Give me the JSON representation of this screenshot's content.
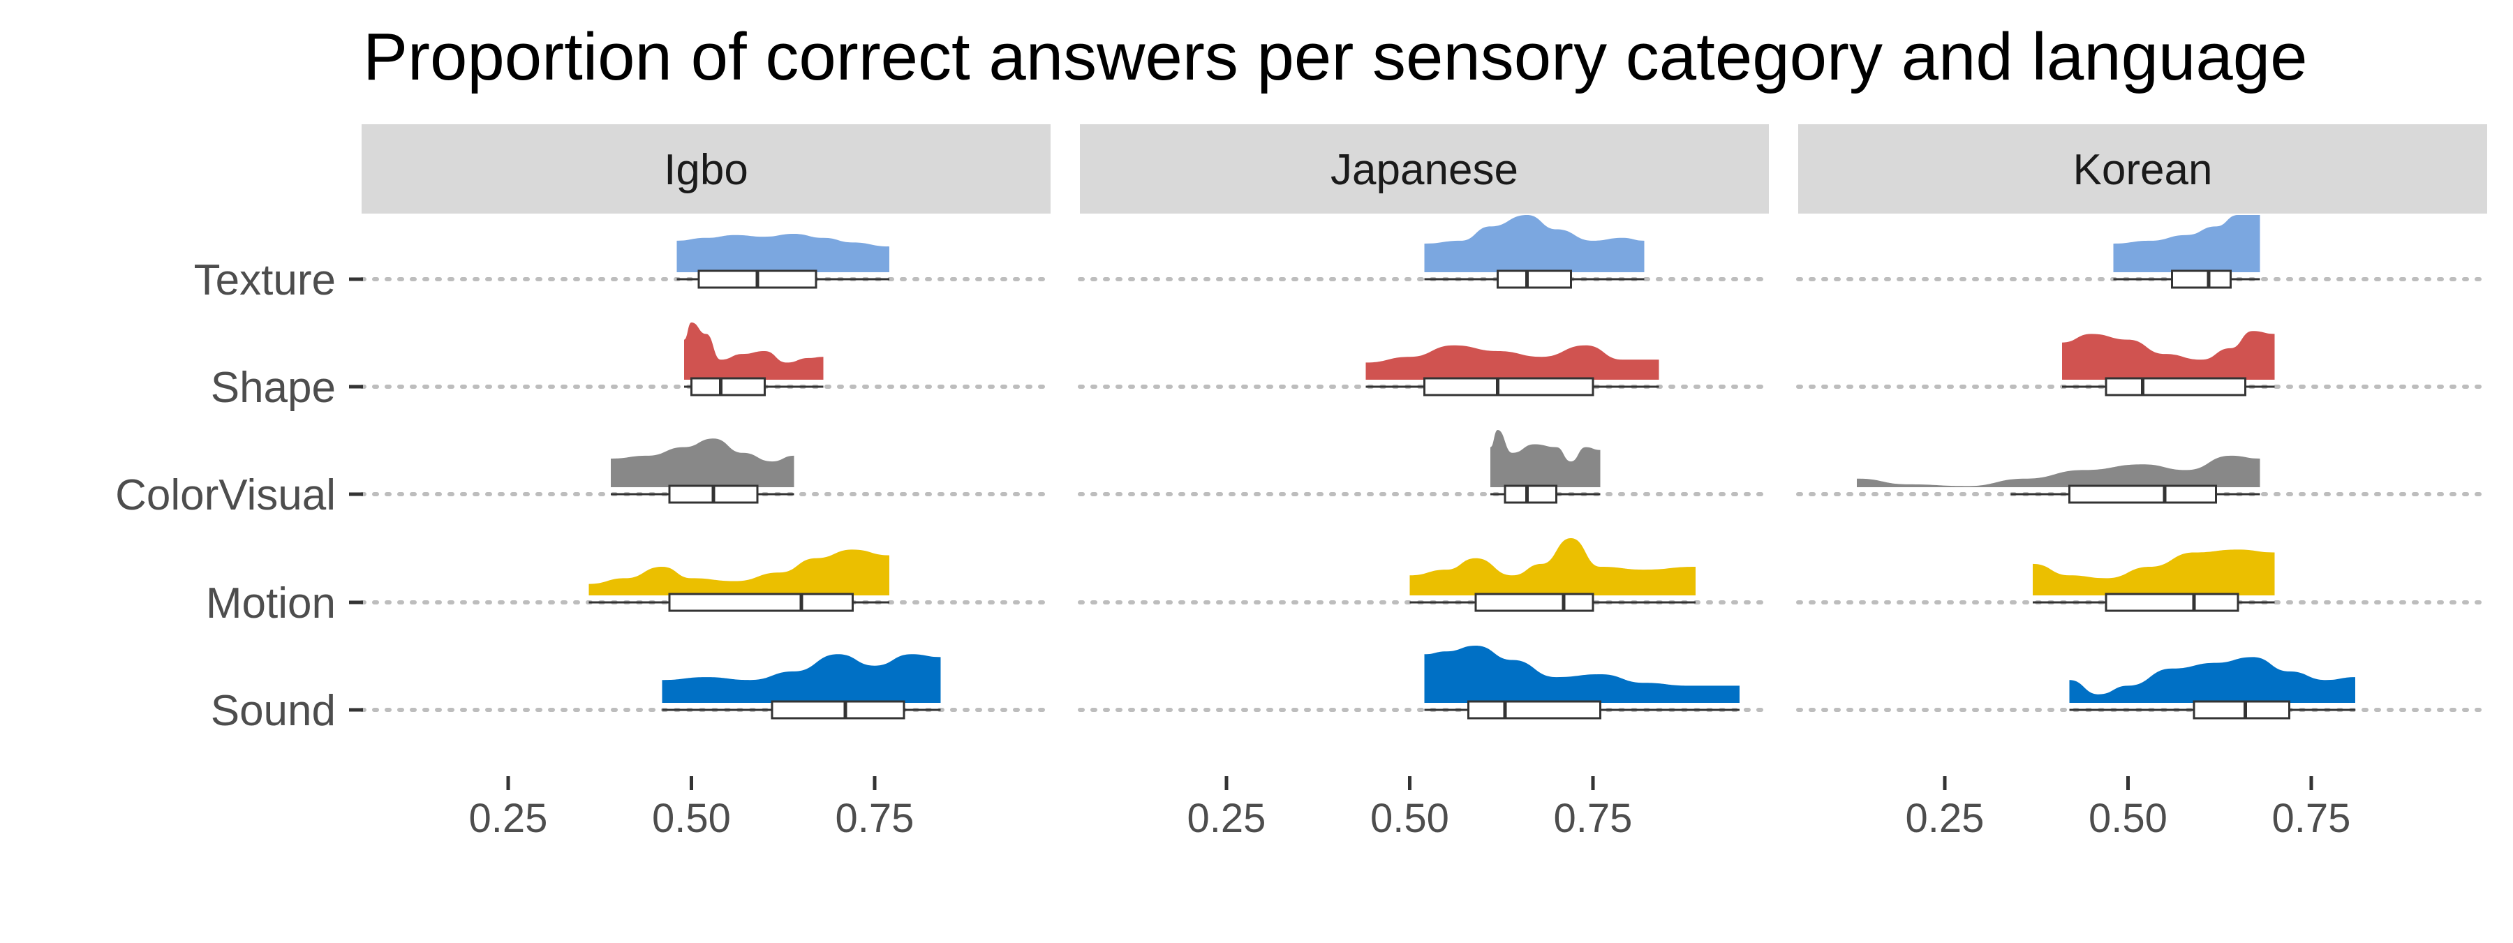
{
  "chart_data": {
    "type": "raincloud",
    "title": "Proportion of correct answers per sensory category and language",
    "xlabel": "",
    "ylabel": "",
    "xlim": [
      0.05,
      0.99
    ],
    "x_ticks": [
      "0.25",
      "0.50",
      "0.75"
    ],
    "x_tick_values": [
      0.25,
      0.5,
      0.75
    ],
    "grid": "dotted horizontal lines at each category",
    "categories": [
      "Texture",
      "Shape",
      "ColorVisual",
      "Motion",
      "Sound"
    ],
    "colors": {
      "Texture": "#7BA7E0",
      "Shape": "#D05350",
      "ColorVisual": "#888888",
      "Motion": "#EBBF00",
      "Sound": "#0070C5"
    },
    "panels": [
      {
        "language": "Igbo",
        "series": [
          {
            "category": "Texture",
            "min": 0.48,
            "q1": 0.51,
            "median": 0.59,
            "q3": 0.67,
            "max": 0.77,
            "density": [
              [
                0.48,
                0.55
              ],
              [
                0.52,
                0.6
              ],
              [
                0.56,
                0.65
              ],
              [
                0.6,
                0.62
              ],
              [
                0.64,
                0.67
              ],
              [
                0.68,
                0.6
              ],
              [
                0.72,
                0.52
              ],
              [
                0.77,
                0.45
              ]
            ]
          },
          {
            "category": "Shape",
            "min": 0.49,
            "q1": 0.5,
            "median": 0.54,
            "q3": 0.6,
            "max": 0.68,
            "density": [
              [
                0.49,
                0.7
              ],
              [
                0.5,
                1.0
              ],
              [
                0.52,
                0.8
              ],
              [
                0.54,
                0.35
              ],
              [
                0.57,
                0.45
              ],
              [
                0.6,
                0.5
              ],
              [
                0.63,
                0.3
              ],
              [
                0.66,
                0.38
              ],
              [
                0.68,
                0.4
              ]
            ]
          },
          {
            "category": "ColorVisual",
            "min": 0.39,
            "q1": 0.47,
            "median": 0.53,
            "q3": 0.59,
            "max": 0.64,
            "density": [
              [
                0.39,
                0.5
              ],
              [
                0.44,
                0.55
              ],
              [
                0.49,
                0.7
              ],
              [
                0.53,
                0.85
              ],
              [
                0.57,
                0.6
              ],
              [
                0.61,
                0.45
              ],
              [
                0.64,
                0.55
              ]
            ]
          },
          {
            "category": "Motion",
            "min": 0.36,
            "q1": 0.47,
            "median": 0.65,
            "q3": 0.72,
            "max": 0.77,
            "density": [
              [
                0.36,
                0.2
              ],
              [
                0.41,
                0.3
              ],
              [
                0.46,
                0.5
              ],
              [
                0.5,
                0.3
              ],
              [
                0.56,
                0.25
              ],
              [
                0.62,
                0.4
              ],
              [
                0.67,
                0.65
              ],
              [
                0.72,
                0.8
              ],
              [
                0.77,
                0.7
              ]
            ]
          },
          {
            "category": "Sound",
            "min": 0.46,
            "q1": 0.61,
            "median": 0.71,
            "q3": 0.79,
            "max": 0.84,
            "density": [
              [
                0.46,
                0.4
              ],
              [
                0.52,
                0.45
              ],
              [
                0.58,
                0.4
              ],
              [
                0.64,
                0.55
              ],
              [
                0.7,
                0.85
              ],
              [
                0.75,
                0.65
              ],
              [
                0.8,
                0.85
              ],
              [
                0.84,
                0.8
              ]
            ]
          }
        ]
      },
      {
        "language": "Japanese",
        "series": [
          {
            "category": "Texture",
            "min": 0.52,
            "q1": 0.62,
            "median": 0.66,
            "q3": 0.72,
            "max": 0.82,
            "density": [
              [
                0.52,
                0.5
              ],
              [
                0.57,
                0.55
              ],
              [
                0.61,
                0.8
              ],
              [
                0.66,
                1.0
              ],
              [
                0.7,
                0.75
              ],
              [
                0.75,
                0.55
              ],
              [
                0.79,
                0.6
              ],
              [
                0.82,
                0.55
              ]
            ]
          },
          {
            "category": "Shape",
            "min": 0.44,
            "q1": 0.52,
            "median": 0.62,
            "q3": 0.75,
            "max": 0.84,
            "density": [
              [
                0.44,
                0.3
              ],
              [
                0.5,
                0.4
              ],
              [
                0.56,
                0.6
              ],
              [
                0.62,
                0.5
              ],
              [
                0.68,
                0.4
              ],
              [
                0.74,
                0.6
              ],
              [
                0.79,
                0.35
              ],
              [
                0.84,
                0.35
              ]
            ]
          },
          {
            "category": "ColorVisual",
            "min": 0.61,
            "q1": 0.63,
            "median": 0.66,
            "q3": 0.7,
            "max": 0.76,
            "density": [
              [
                0.61,
                0.7
              ],
              [
                0.62,
                1.0
              ],
              [
                0.64,
                0.6
              ],
              [
                0.67,
                0.75
              ],
              [
                0.7,
                0.7
              ],
              [
                0.72,
                0.45
              ],
              [
                0.74,
                0.7
              ],
              [
                0.76,
                0.65
              ]
            ]
          },
          {
            "category": "Motion",
            "min": 0.5,
            "q1": 0.59,
            "median": 0.71,
            "q3": 0.75,
            "max": 0.89,
            "density": [
              [
                0.5,
                0.35
              ],
              [
                0.55,
                0.45
              ],
              [
                0.59,
                0.65
              ],
              [
                0.64,
                0.35
              ],
              [
                0.68,
                0.55
              ],
              [
                0.72,
                1.0
              ],
              [
                0.76,
                0.5
              ],
              [
                0.82,
                0.45
              ],
              [
                0.89,
                0.5
              ]
            ]
          },
          {
            "category": "Sound",
            "min": 0.52,
            "q1": 0.58,
            "median": 0.63,
            "q3": 0.76,
            "max": 0.95,
            "density": [
              [
                0.52,
                0.85
              ],
              [
                0.55,
                0.9
              ],
              [
                0.59,
                1.0
              ],
              [
                0.64,
                0.75
              ],
              [
                0.7,
                0.45
              ],
              [
                0.76,
                0.5
              ],
              [
                0.82,
                0.35
              ],
              [
                0.88,
                0.3
              ],
              [
                0.95,
                0.3
              ]
            ]
          }
        ]
      },
      {
        "language": "Korean",
        "series": [
          {
            "category": "Texture",
            "min": 0.48,
            "q1": 0.56,
            "median": 0.61,
            "q3": 0.64,
            "max": 0.68,
            "density": [
              [
                0.48,
                0.5
              ],
              [
                0.53,
                0.55
              ],
              [
                0.58,
                0.65
              ],
              [
                0.62,
                0.8
              ],
              [
                0.65,
                1.0
              ],
              [
                0.68,
                1.0
              ]
            ]
          },
          {
            "category": "Shape",
            "min": 0.41,
            "q1": 0.47,
            "median": 0.52,
            "q3": 0.66,
            "max": 0.7,
            "density": [
              [
                0.41,
                0.65
              ],
              [
                0.45,
                0.8
              ],
              [
                0.5,
                0.7
              ],
              [
                0.55,
                0.45
              ],
              [
                0.6,
                0.35
              ],
              [
                0.64,
                0.55
              ],
              [
                0.67,
                0.85
              ],
              [
                0.7,
                0.8
              ]
            ]
          },
          {
            "category": "ColorVisual",
            "min": 0.34,
            "q1": 0.42,
            "median": 0.55,
            "q3": 0.62,
            "max": 0.68,
            "density": [
              [
                0.13,
                0.15
              ],
              [
                0.2,
                0.05
              ],
              [
                0.28,
                0.02
              ],
              [
                0.36,
                0.15
              ],
              [
                0.44,
                0.3
              ],
              [
                0.52,
                0.4
              ],
              [
                0.58,
                0.3
              ],
              [
                0.64,
                0.55
              ],
              [
                0.68,
                0.5
              ]
            ]
          },
          {
            "category": "Motion",
            "min": 0.37,
            "q1": 0.47,
            "median": 0.59,
            "q3": 0.65,
            "max": 0.7,
            "density": [
              [
                0.37,
                0.55
              ],
              [
                0.42,
                0.35
              ],
              [
                0.47,
                0.3
              ],
              [
                0.53,
                0.5
              ],
              [
                0.59,
                0.75
              ],
              [
                0.65,
                0.8
              ],
              [
                0.7,
                0.75
              ]
            ]
          },
          {
            "category": "Sound",
            "min": 0.42,
            "q1": 0.59,
            "median": 0.66,
            "q3": 0.72,
            "max": 0.81,
            "density": [
              [
                0.42,
                0.4
              ],
              [
                0.46,
                0.15
              ],
              [
                0.5,
                0.3
              ],
              [
                0.56,
                0.6
              ],
              [
                0.62,
                0.7
              ],
              [
                0.67,
                0.8
              ],
              [
                0.72,
                0.55
              ],
              [
                0.77,
                0.4
              ],
              [
                0.81,
                0.45
              ]
            ]
          }
        ]
      }
    ]
  }
}
